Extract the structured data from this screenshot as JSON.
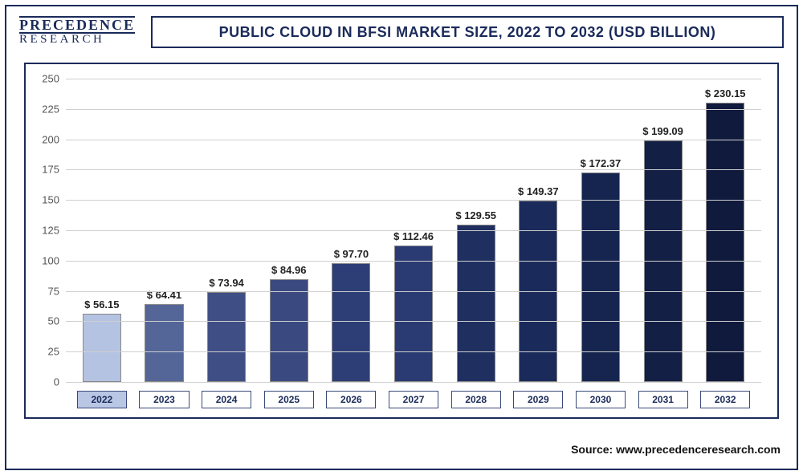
{
  "logo": {
    "line1": "PRECEDENCE",
    "line2": "RESEARCH"
  },
  "title": "PUBLIC CLOUD IN BFSI MARKET SIZE, 2022 TO 2032 (USD BILLION)",
  "source_label": "Source: www.precedenceresearch.com",
  "chart": {
    "type": "bar",
    "ylim": [
      0,
      250
    ],
    "ytick_step": 25,
    "yticks": [
      0,
      25,
      50,
      75,
      100,
      125,
      150,
      175,
      200,
      225,
      250
    ],
    "grid_color": "#cfcfcf",
    "border_color": "#1a2a5a",
    "background_color": "#ffffff",
    "label_fontsize": 13,
    "label_color": "#222",
    "axis_fontsize": 13,
    "bar_width": 0.62,
    "value_prefix": "$ ",
    "categories": [
      "2022",
      "2023",
      "2024",
      "2025",
      "2026",
      "2027",
      "2028",
      "2029",
      "2030",
      "2031",
      "2032"
    ],
    "values": [
      56.15,
      64.41,
      73.94,
      84.96,
      97.7,
      112.46,
      129.55,
      149.37,
      172.37,
      199.09,
      230.15
    ],
    "display_values": [
      "56.15",
      "64.41",
      "73.94",
      "84.96",
      "97.70",
      "112.46",
      "129.55",
      "149.37",
      "172.37",
      "199.09",
      "230.15"
    ],
    "bar_colors": [
      "#b5c3e2",
      "#546597",
      "#3f4e84",
      "#3a4a80",
      "#2d3e76",
      "#2a3a72",
      "#1f2f60",
      "#1a2a5a",
      "#16254f",
      "#131f45",
      "#101a3c"
    ],
    "highlighted_category_index": 0,
    "x_box_bg_highlight": "#b9c6e4",
    "x_box_border": "#3a4a7a"
  }
}
